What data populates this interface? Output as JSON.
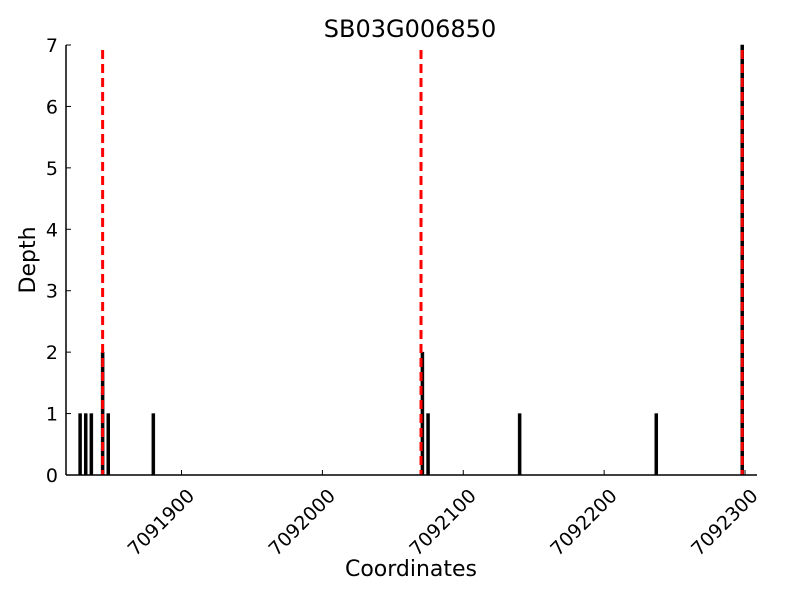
{
  "chart_data": {
    "type": "bar",
    "title": "SB03G006850",
    "xlabel": "Coordinates",
    "ylabel": "Depth",
    "xlim": [
      7091818,
      7092308.5
    ],
    "ylim": [
      0,
      7
    ],
    "xticks": [
      7091900,
      7092000,
      7092100,
      7092200,
      7092300
    ],
    "yticks": [
      0,
      1,
      2,
      3,
      4,
      5,
      6,
      7
    ],
    "grid": false,
    "bars": [
      {
        "x": 7091828,
        "depth": 1
      },
      {
        "x": 7091832,
        "depth": 1
      },
      {
        "x": 7091836,
        "depth": 1
      },
      {
        "x": 7091844,
        "depth": 2
      },
      {
        "x": 7091848,
        "depth": 1
      },
      {
        "x": 7091880,
        "depth": 1
      },
      {
        "x": 7092071,
        "depth": 2
      },
      {
        "x": 7092075,
        "depth": 1
      },
      {
        "x": 7092140,
        "depth": 1
      },
      {
        "x": 7092237,
        "depth": 1
      },
      {
        "x": 7092298,
        "depth": 7
      }
    ],
    "markers": [
      7091844,
      7092070,
      7092298
    ],
    "bar_color": "#000000",
    "marker_color": "#ff0000"
  }
}
